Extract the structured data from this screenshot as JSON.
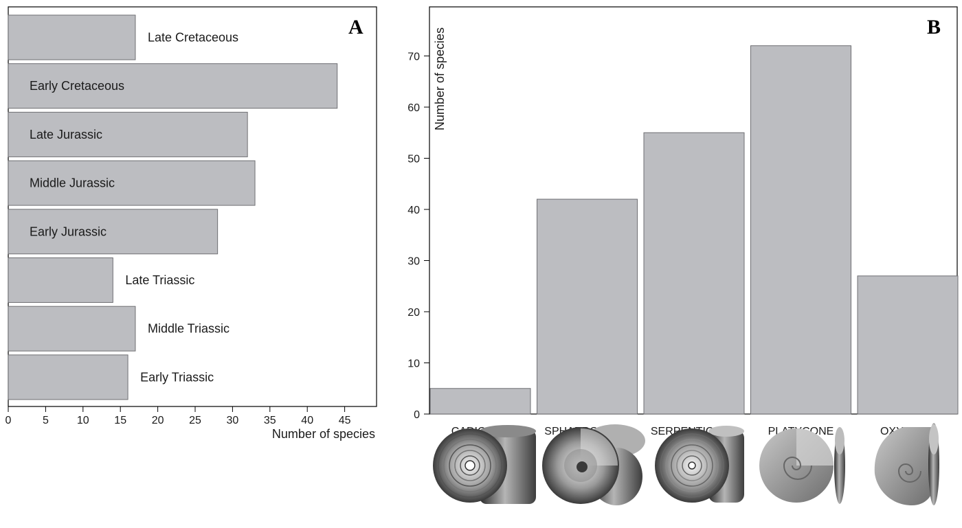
{
  "chart_data": [
    {
      "panel": "A",
      "type": "bar",
      "orientation": "horizontal",
      "categories": [
        "Late Cretaceous",
        "Early Cretaceous",
        "Late Jurassic",
        "Middle Jurassic",
        "Early Jurassic",
        "Late Triassic",
        "Middle Triassic",
        "Early Triassic"
      ],
      "values": [
        17,
        44,
        32,
        33,
        28,
        14,
        17,
        16
      ],
      "xlabel": "Number of species",
      "ylabel": "",
      "xlim": [
        0,
        50
      ],
      "xticks": [
        0,
        5,
        10,
        15,
        20,
        25,
        30,
        35,
        40,
        45
      ],
      "grid": false,
      "bar_color": "#bcbdc1"
    },
    {
      "panel": "B",
      "type": "bar",
      "orientation": "vertical",
      "categories": [
        "CADICONE",
        "SPHAEROCONE",
        "SERPENTICONE",
        "PLATYCONE",
        "OXYCONE"
      ],
      "values": [
        5,
        42,
        55,
        72,
        27
      ],
      "xlabel": "",
      "ylabel": "Number of species",
      "ylim": [
        0,
        80
      ],
      "yticks": [
        0,
        10,
        20,
        30,
        40,
        50,
        60,
        70
      ],
      "grid": false,
      "bar_color": "#bcbdc1",
      "shell_icons": [
        "cadicone-shell-icon",
        "sphaerocone-shell-icon",
        "serpenticone-shell-icon",
        "platycone-shell-icon",
        "oxycone-shell-icon"
      ]
    }
  ]
}
